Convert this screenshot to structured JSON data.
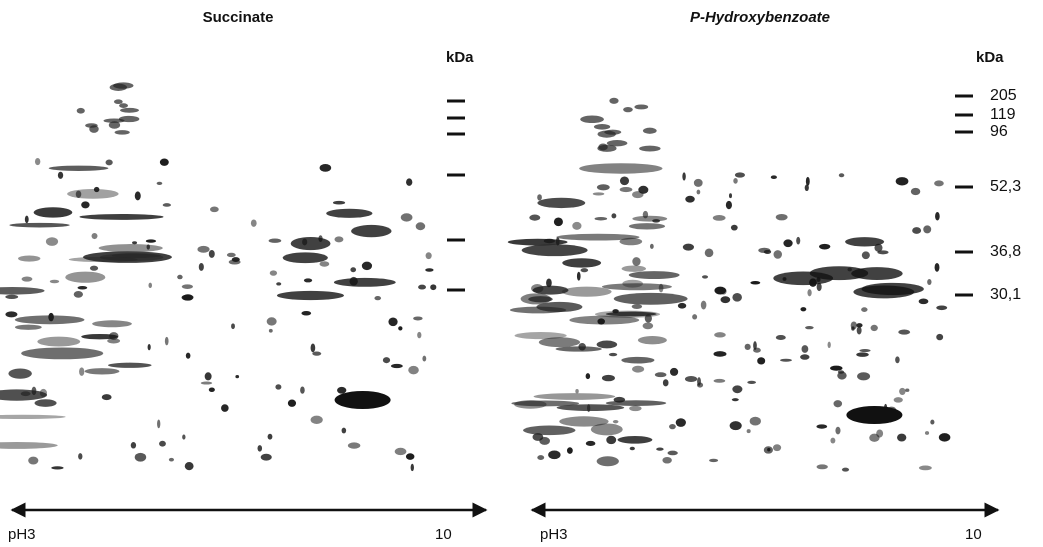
{
  "panels": [
    {
      "title": "Succinate",
      "unit": "kDa",
      "axis": {
        "start": "pH3",
        "end": "10"
      }
    },
    {
      "title": "P-Hydroxybenzoate",
      "unit": "kDa",
      "markers": [
        "205",
        "119",
        "96",
        "52,3",
        "36,8",
        "30,1"
      ],
      "axis": {
        "start": "pH3",
        "end": "10"
      }
    }
  ]
}
